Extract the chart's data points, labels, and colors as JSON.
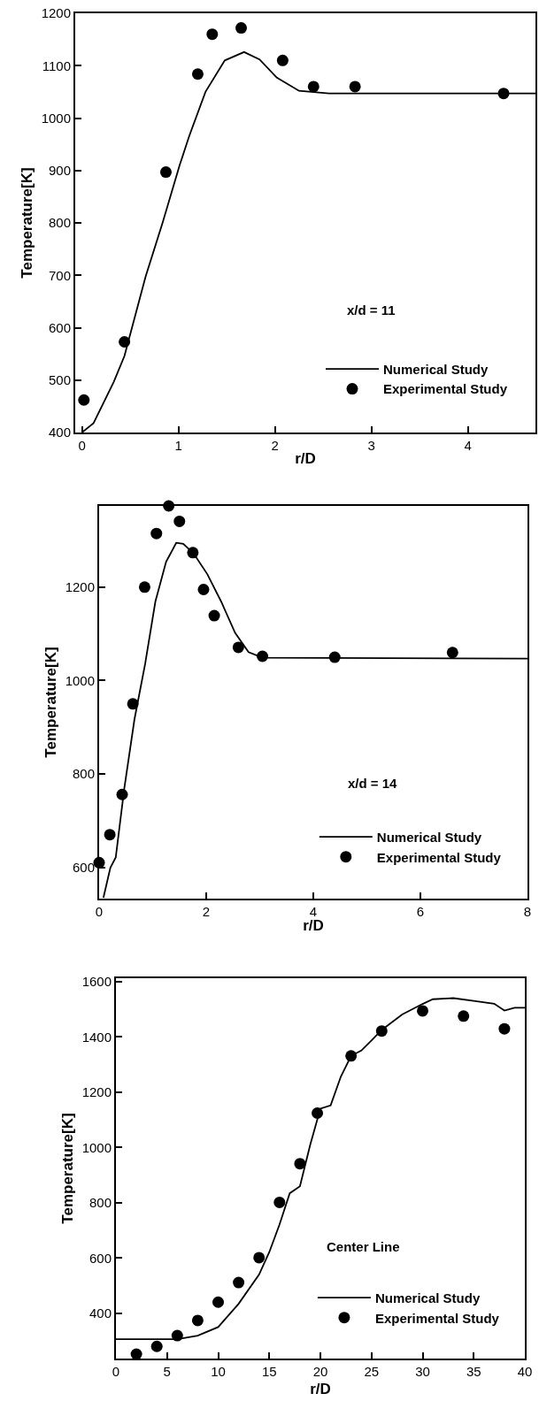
{
  "chart_data": [
    {
      "type": "line",
      "xlabel": "r/D",
      "ylabel": "Temperature[K]",
      "annotations": [
        "x/d = 11"
      ],
      "legend": "bottom right",
      "grid": false,
      "xlim": [
        -0.07,
        4.7
      ],
      "xticks": [
        0,
        1,
        2,
        3,
        4
      ],
      "ylim": [
        400,
        1200
      ],
      "yticks": [
        400,
        500,
        600,
        700,
        800,
        900,
        1000,
        1100,
        1200
      ],
      "series": [
        {
          "name": "Numerical Study",
          "type": "line",
          "color": "#000000",
          "marker": "none",
          "x": [
            0,
            0.12,
            0.33,
            0.44,
            0.66,
            0.835,
            1.01,
            1.11,
            1.28,
            1.48,
            1.68,
            1.84,
            2.02,
            2.25,
            2.56,
            4.7
          ],
          "values": [
            400,
            418,
            497,
            546,
            698,
            800,
            909,
            965,
            1050,
            1110,
            1126,
            1112,
            1077,
            1052,
            1047,
            1047
          ]
        },
        {
          "name": "Experimental Study",
          "type": "scatter",
          "color": "#000000",
          "marker": "circle",
          "x": [
            0.02,
            0.44,
            0.87,
            1.2,
            1.35,
            1.65,
            2.08,
            2.4,
            2.83,
            4.37
          ],
          "values": [
            462,
            573,
            897,
            1084,
            1160,
            1172,
            1110,
            1060,
            1060,
            1047
          ]
        }
      ]
    },
    {
      "type": "line",
      "xlabel": "r/D",
      "ylabel": "Temperature[K]",
      "annotations": [
        "x/d = 14"
      ],
      "legend": "bottom right",
      "grid": false,
      "xlim": [
        0,
        8
      ],
      "xticks": [
        0,
        2,
        4,
        6,
        8
      ],
      "ylim": [
        533,
        1374
      ],
      "yticks": [
        600,
        800,
        1000,
        1200
      ],
      "series": [
        {
          "name": "Numerical Study",
          "type": "line",
          "color": "#000000",
          "marker": "none",
          "x": [
            0.08,
            0.21,
            0.31,
            0.47,
            0.66,
            0.86,
            1.05,
            1.25,
            1.44,
            1.57,
            1.76,
            2.02,
            2.28,
            2.54,
            2.79,
            3.05,
            8
          ],
          "values": [
            535,
            599,
            621,
            769,
            917,
            1036,
            1169,
            1254,
            1295,
            1293,
            1273,
            1228,
            1169,
            1102,
            1061,
            1049,
            1047
          ]
        },
        {
          "name": "Experimental Study",
          "type": "scatter",
          "color": "#000000",
          "marker": "circle",
          "x": [
            0,
            0.2,
            0.43,
            0.63,
            0.85,
            1.07,
            1.3,
            1.5,
            1.75,
            1.95,
            2.15,
            2.6,
            3.05,
            4.4,
            6.6
          ],
          "values": [
            610,
            670,
            756,
            950,
            1200,
            1315,
            1374,
            1341,
            1274,
            1195,
            1139,
            1071,
            1052,
            1050,
            1060
          ]
        }
      ]
    },
    {
      "type": "line",
      "xlabel": "r/D",
      "ylabel": "Temperature[K]",
      "annotations": [
        "Center Line"
      ],
      "legend": "bottom right",
      "grid": false,
      "xlim": [
        0,
        40
      ],
      "xticks": [
        0,
        5,
        10,
        15,
        20,
        25,
        30,
        35,
        40
      ],
      "ylim": [
        236,
        1612
      ],
      "yticks": [
        400,
        600,
        800,
        1000,
        1200,
        1400,
        1600
      ],
      "series": [
        {
          "name": "Numerical Study",
          "type": "line",
          "color": "#000000",
          "marker": "none",
          "x": [
            0,
            6,
            8,
            10,
            12,
            14,
            15,
            16,
            17,
            18,
            19,
            20,
            21,
            22,
            23,
            24,
            25,
            26,
            28,
            30,
            31,
            33,
            35,
            37,
            38,
            39,
            40
          ],
          "values": [
            306,
            306,
            319,
            350,
            434,
            540,
            621,
            721,
            834,
            859,
            1009,
            1140,
            1152,
            1256,
            1331,
            1350,
            1387,
            1425,
            1481,
            1519,
            1536,
            1540,
            1530,
            1520,
            1495,
            1505,
            1505
          ]
        },
        {
          "name": "Experimental Study",
          "type": "scatter",
          "color": "#000000",
          "marker": "circle",
          "x": [
            2,
            4,
            6,
            8,
            10,
            12,
            14,
            16,
            18,
            19.7,
            23,
            26,
            30,
            34,
            38
          ],
          "values": [
            252,
            280,
            319,
            374,
            440,
            511,
            601,
            801,
            941,
            1124,
            1331,
            1421,
            1494,
            1475,
            1429
          ]
        }
      ]
    }
  ]
}
